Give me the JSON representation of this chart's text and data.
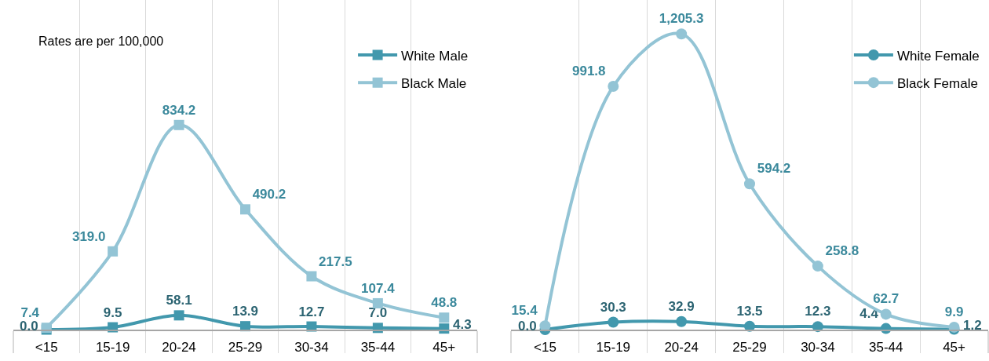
{
  "chart_data": [
    {
      "type": "line",
      "categories": [
        "<15",
        "15-19",
        "20-24",
        "25-29",
        "30-34",
        "35-44",
        "45+"
      ],
      "series": [
        {
          "name": "White Male",
          "color": "#4298ad",
          "values": [
            0,
            9.5,
            58.1,
            13.9,
            12.7,
            7,
            4.3
          ],
          "value_labels": [
            "0.0",
            "9.5",
            "58.1",
            "13.9",
            "12.7",
            "7.0",
            "4.3"
          ]
        },
        {
          "name": "Black Male",
          "color": "#93c4d5",
          "values": [
            7.4,
            319,
            834.2,
            490.2,
            217.5,
            107.4,
            48.8
          ],
          "value_labels": [
            "7.4",
            "319.0",
            "834.2",
            "490.2",
            "217.5",
            "107.4",
            "48.8"
          ]
        }
      ],
      "marker": "square",
      "grid": "x",
      "legend": "top right",
      "tick_labels": "x",
      "annotations": [
        "Rates are per 100,000"
      ]
    },
    {
      "type": "line",
      "categories": [
        "<15",
        "15-19",
        "20-24",
        "25-29",
        "30-34",
        "35-44",
        "45+"
      ],
      "series": [
        {
          "name": "White Female",
          "color": "#4298ad",
          "values": [
            0,
            30.3,
            32.9,
            13.5,
            12.3,
            4.4,
            1.2
          ],
          "value_labels": [
            "0.0",
            "30.3",
            "32.9",
            "13.5",
            "12.3",
            "4.4",
            "1.2"
          ]
        },
        {
          "name": "Black Female",
          "color": "#93c4d5",
          "values": [
            15.4,
            991.8,
            1205.3,
            594.2,
            258.8,
            62.7,
            9.9
          ],
          "value_labels": [
            "15.4",
            "991.8",
            "1,205.3",
            "594.2",
            "258.8",
            "62.7",
            "9.9"
          ]
        }
      ],
      "marker": "circle",
      "grid": "x",
      "legend": "top right",
      "tick_labels": "x"
    }
  ]
}
